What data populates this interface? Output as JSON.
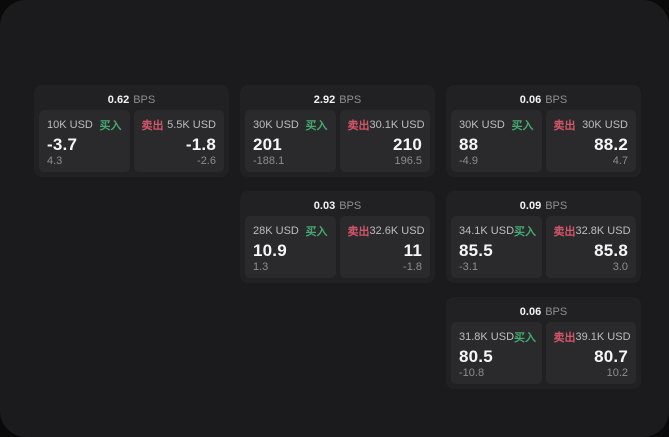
{
  "labels": {
    "bps": "BPS",
    "buy": "买入",
    "sell": "卖出"
  },
  "colors": {
    "buy": "#44a96e",
    "sell": "#d25568",
    "page_bg": "#0a0a0b",
    "surface_bg": "#1b1b1d",
    "card_bg": "#212123",
    "panel_bg": "#2a2a2c"
  },
  "cards": [
    {
      "col": 1,
      "row": 1,
      "bps": "0.62",
      "buy": {
        "amount": "10K USD",
        "price": "-3.7",
        "delta": "4.3"
      },
      "sell": {
        "amount": "5.5K USD",
        "price": "-1.8",
        "delta": "-2.6"
      }
    },
    {
      "col": 2,
      "row": 1,
      "bps": "2.92",
      "buy": {
        "amount": "30K USD",
        "price": "201",
        "delta": "-188.1"
      },
      "sell": {
        "amount": "30.1K USD",
        "price": "210",
        "delta": "196.5"
      }
    },
    {
      "col": 3,
      "row": 1,
      "bps": "0.06",
      "buy": {
        "amount": "30K USD",
        "price": "88",
        "delta": "-4.9"
      },
      "sell": {
        "amount": "30K USD",
        "price": "88.2",
        "delta": "4.7"
      }
    },
    {
      "col": 2,
      "row": 2,
      "bps": "0.03",
      "buy": {
        "amount": "28K USD",
        "price": "10.9",
        "delta": "1.3"
      },
      "sell": {
        "amount": "32.6K USD",
        "price": "11",
        "delta": "-1.8"
      }
    },
    {
      "col": 3,
      "row": 2,
      "bps": "0.09",
      "buy": {
        "amount": "34.1K USD",
        "price": "85.5",
        "delta": "-3.1"
      },
      "sell": {
        "amount": "32.8K USD",
        "price": "85.8",
        "delta": "3.0"
      }
    },
    {
      "col": 3,
      "row": 3,
      "bps": "0.06",
      "buy": {
        "amount": "31.8K USD",
        "price": "80.5",
        "delta": "-10.8"
      },
      "sell": {
        "amount": "39.1K USD",
        "price": "80.7",
        "delta": "10.2"
      }
    }
  ]
}
